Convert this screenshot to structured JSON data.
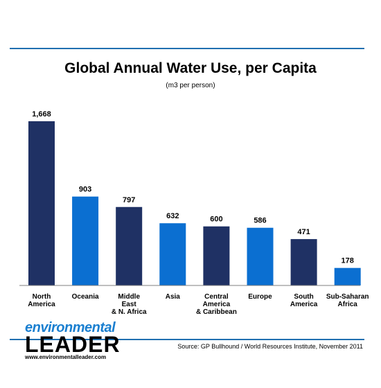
{
  "title": "Global Annual Water Use, per Capita",
  "subtitle": "(m3 per person)",
  "source": "Source: GP Bullhound / World Resources Institute, November 2011",
  "logo": {
    "line1": "environmental",
    "line2": "LEADER",
    "line3": "www.environmentalleader.com"
  },
  "colors": {
    "dark_bar": "#1f3164",
    "light_bar": "#0b6fd1",
    "rule": "#1f6fb0",
    "baseline": "#7f7f7f"
  },
  "chart_data": {
    "type": "bar",
    "title": "Global Annual Water Use, per Capita",
    "subtitle": "(m3 per person)",
    "categories": [
      [
        "North",
        "America"
      ],
      [
        "Oceania"
      ],
      [
        "Middle",
        "East",
        "& N. Africa"
      ],
      [
        "Asia"
      ],
      [
        "Central",
        "America",
        "& Caribbean"
      ],
      [
        "Europe"
      ],
      [
        "South",
        "America"
      ],
      [
        "Sub-Saharan",
        "Africa"
      ]
    ],
    "values": [
      1668,
      903,
      797,
      632,
      600,
      586,
      471,
      178
    ],
    "value_labels": [
      "1,668",
      "903",
      "797",
      "632",
      "600",
      "586",
      "471",
      "178"
    ],
    "bar_colors": [
      "dark",
      "light",
      "dark",
      "light",
      "dark",
      "light",
      "dark",
      "light"
    ],
    "ylim": [
      0,
      1668
    ],
    "xlabel": "",
    "ylabel": "",
    "grid": false,
    "legend": "none"
  }
}
